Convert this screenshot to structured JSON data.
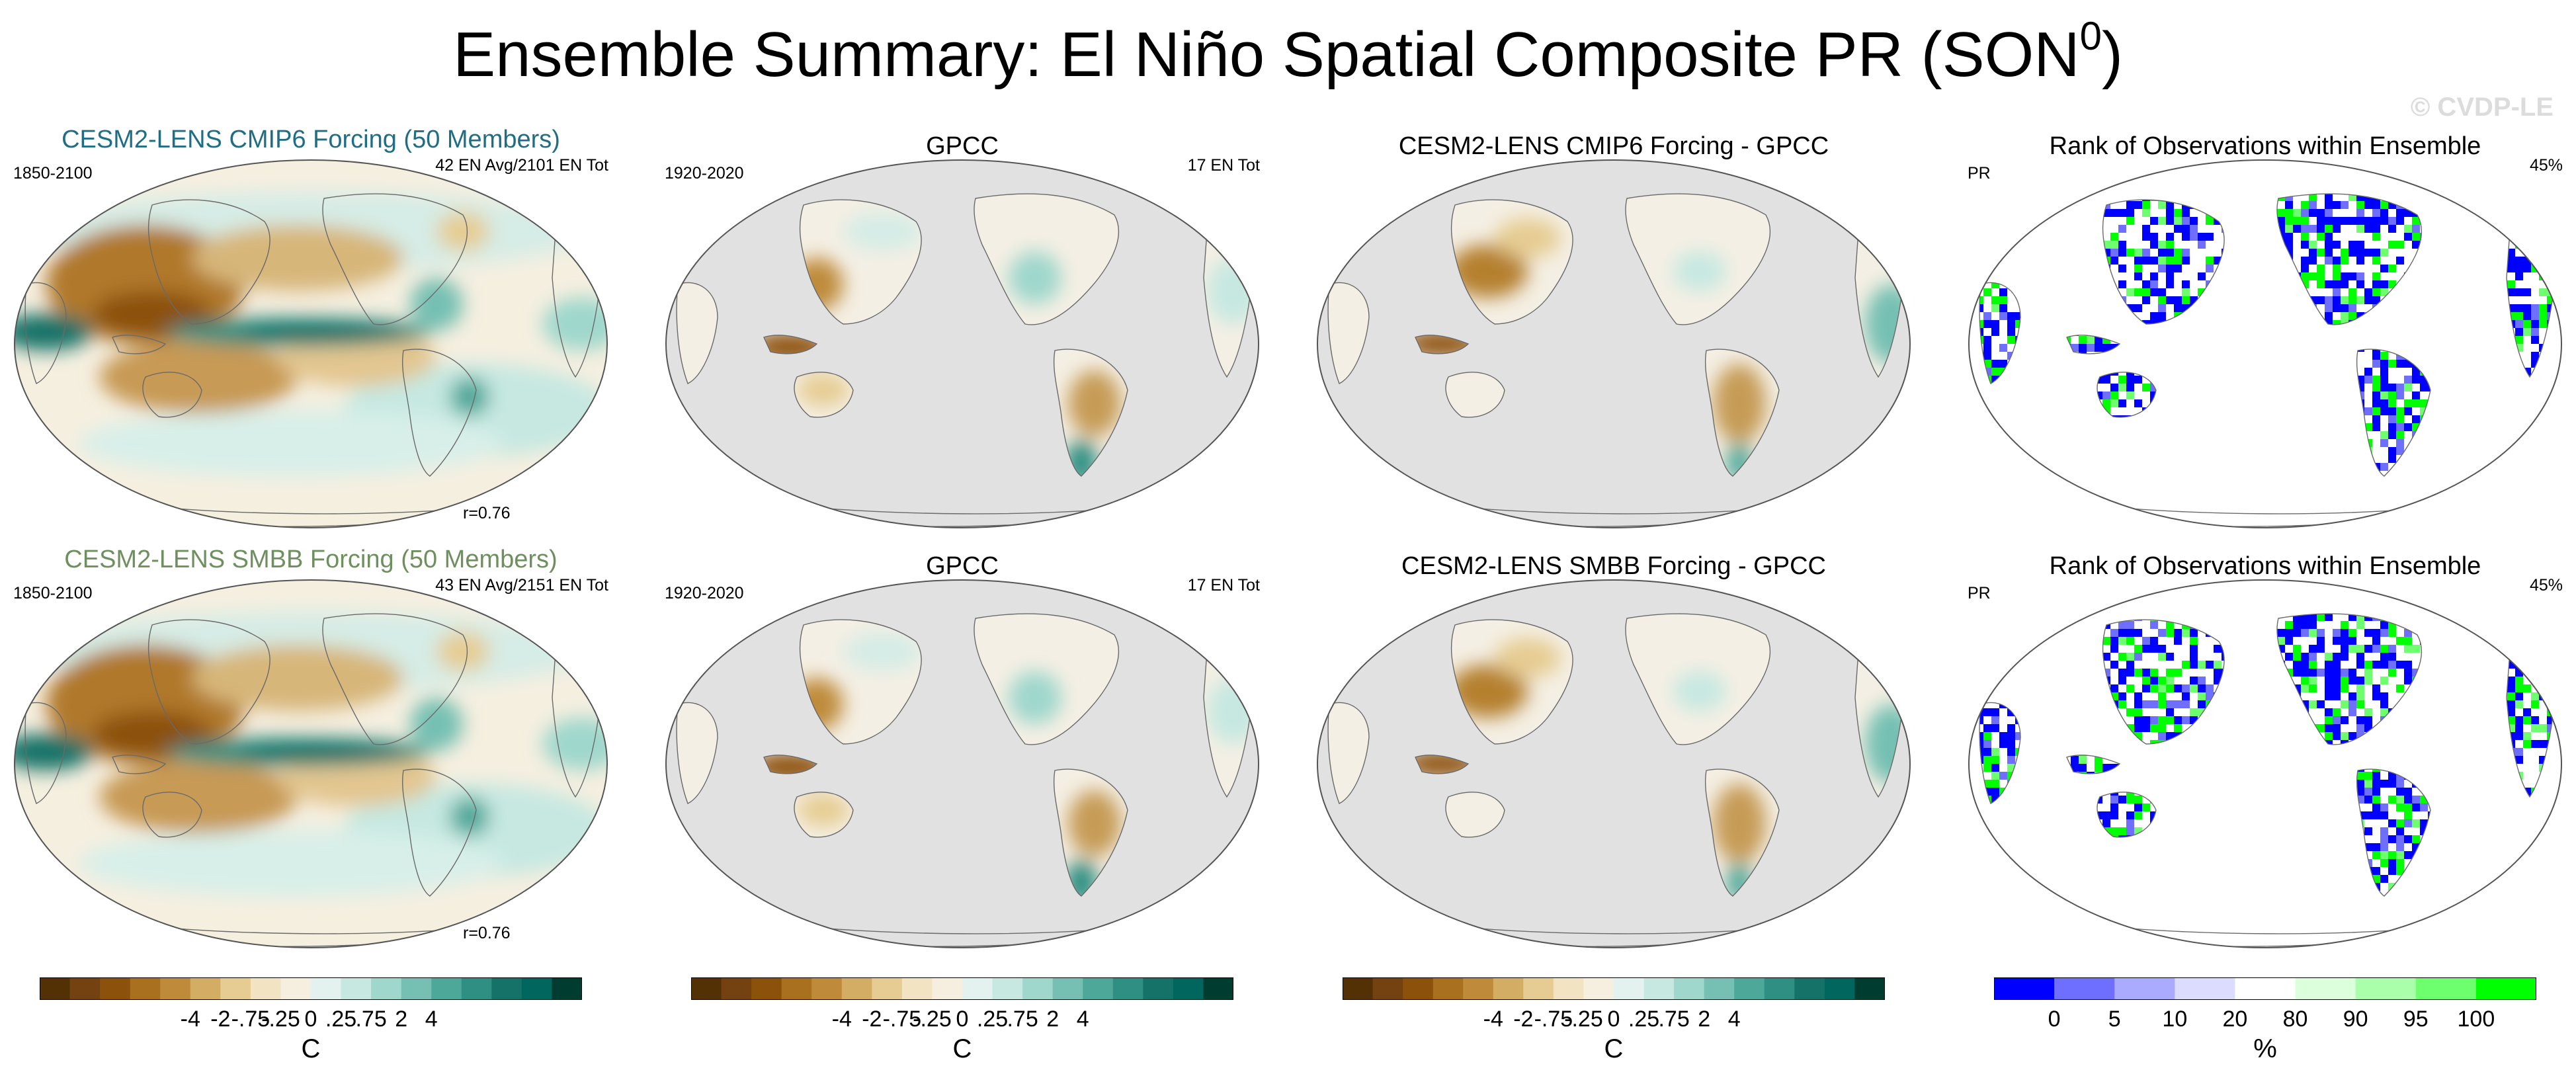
{
  "title": "Ensemble Summary: El Niño Spatial Composite PR (SON",
  "title_sup": "0",
  "title_close": ")",
  "watermark": "© CVDP-LE",
  "rows": [
    {
      "panels": [
        {
          "type": "model",
          "title": "CESM2-LENS CMIP6 Forcing (50 Members)",
          "title_color": "#1f6e86",
          "left": "1850-2100",
          "right": "42 EN Avg/2101 EN Tot",
          "corr": "r=0.76"
        },
        {
          "type": "obs",
          "title": "GPCC",
          "left": "1920-2020",
          "right": "17 EN Tot"
        },
        {
          "type": "diff",
          "title": "CESM2-LENS CMIP6 Forcing - GPCC"
        },
        {
          "type": "rank",
          "title": "Rank of Observations within Ensemble",
          "left": "PR",
          "right": "45%"
        }
      ]
    },
    {
      "panels": [
        {
          "type": "model",
          "title": "CESM2-LENS SMBB Forcing (50 Members)",
          "title_color": "#6e8f5e",
          "left": "1850-2100",
          "right": "43 EN Avg/2151 EN Tot",
          "corr": "r=0.76"
        },
        {
          "type": "obs",
          "title": "GPCC",
          "left": "1920-2020",
          "right": "17 EN Tot"
        },
        {
          "type": "diff",
          "title": "CESM2-LENS SMBB Forcing - GPCC"
        },
        {
          "type": "rank",
          "title": "Rank of Observations within Ensemble",
          "left": "PR",
          "right": "45%"
        }
      ]
    }
  ],
  "colorbars": [
    {
      "labels": [
        "-4",
        "-2",
        "-.75",
        "-.25",
        "0",
        ".25",
        ".75",
        "2",
        "4"
      ],
      "unit": "C"
    },
    {
      "labels": [
        "-4",
        "-2",
        "-.75",
        "-.25",
        "0",
        ".25",
        ".75",
        "2",
        "4"
      ],
      "unit": "C"
    },
    {
      "labels": [
        "-4",
        "-2",
        "-.75",
        "-.25",
        "0",
        ".25",
        ".75",
        "2",
        "4"
      ],
      "unit": "C"
    },
    {
      "labels": [
        "0",
        "5",
        "10",
        "20",
        "80",
        "90",
        "95",
        "100"
      ],
      "unit": "%"
    }
  ],
  "diverging_colors": [
    "#543005",
    "#744210",
    "#8c510a",
    "#a9711f",
    "#bf8b3a",
    "#d4ad64",
    "#e6cc92",
    "#f2e4c2",
    "#f6efe0",
    "#e4f2ef",
    "#c6e8e1",
    "#9fd7cc",
    "#75c0b2",
    "#4ea89a",
    "#2f8f82",
    "#147268",
    "#01665e",
    "#003c30"
  ],
  "rank_colors": [
    "#0000ff",
    "#6e6eff",
    "#aaaaff",
    "#dcdcff",
    "#ffffff",
    "#dcffdc",
    "#aaffaa",
    "#6eff6e",
    "#00ff00"
  ]
}
